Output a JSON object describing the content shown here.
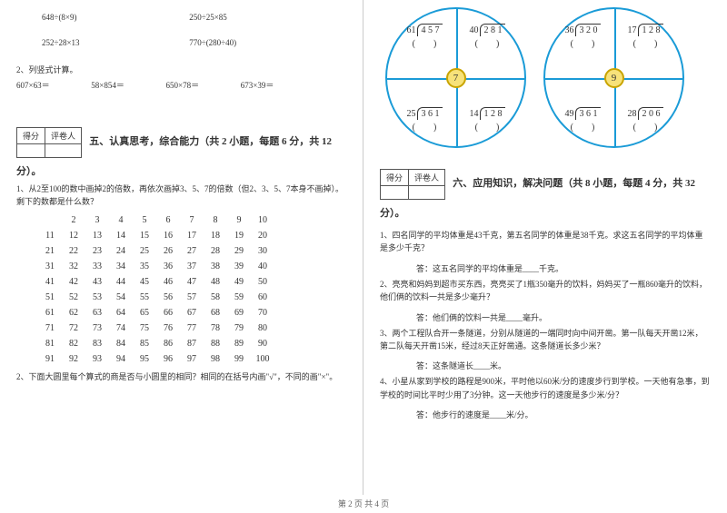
{
  "left": {
    "exprs_row1": {
      "a": "648÷(8×9)",
      "b": "250÷25×85"
    },
    "exprs_row2": {
      "a": "252÷28×13",
      "b": "770÷(280÷40)"
    },
    "vertical_label": "2、列竖式计算。",
    "vertical_exprs": {
      "a": "607×63＝",
      "b": "58×854＝",
      "c": "650×78＝",
      "d": "673×39＝"
    },
    "score_headers": {
      "a": "得分",
      "b": "评卷人"
    },
    "section5_title": "五、认真思考，综合能力（共 2 小题，每题 6 分，共 12",
    "section5_title2": "分）。",
    "q1": "1、从2至100的数中画掉2的倍数，再依次画掉3、5、7的倍数（但2、3、5、7本身不画掉）。剩下的数都是什么数？",
    "grid": [
      [
        "2",
        "3",
        "4",
        "5",
        "6",
        "7",
        "8",
        "9",
        "10"
      ],
      [
        "11",
        "12",
        "13",
        "14",
        "15",
        "16",
        "17",
        "18",
        "19",
        "20"
      ],
      [
        "21",
        "22",
        "23",
        "24",
        "25",
        "26",
        "27",
        "28",
        "29",
        "30"
      ],
      [
        "31",
        "32",
        "33",
        "34",
        "35",
        "36",
        "37",
        "38",
        "39",
        "40"
      ],
      [
        "41",
        "42",
        "43",
        "44",
        "45",
        "46",
        "47",
        "48",
        "49",
        "50"
      ],
      [
        "51",
        "52",
        "53",
        "54",
        "55",
        "56",
        "57",
        "58",
        "59",
        "60"
      ],
      [
        "61",
        "62",
        "63",
        "64",
        "65",
        "66",
        "67",
        "68",
        "69",
        "70"
      ],
      [
        "71",
        "72",
        "73",
        "74",
        "75",
        "76",
        "77",
        "78",
        "79",
        "80"
      ],
      [
        "81",
        "82",
        "83",
        "84",
        "85",
        "86",
        "87",
        "88",
        "89",
        "90"
      ],
      [
        "91",
        "92",
        "93",
        "94",
        "95",
        "96",
        "97",
        "98",
        "99",
        "100"
      ]
    ],
    "q2": "2、下面大圆里每个算式的商是否与小圆里的相同？相同的在括号内画\"√\"，不同的画\"×\"。"
  },
  "right": {
    "circle1": {
      "hub": "7",
      "TL": {
        "divisor": "61",
        "dividend": "4 5 7"
      },
      "TR": {
        "divisor": "40",
        "dividend": "2 8 1"
      },
      "BL": {
        "divisor": "25",
        "dividend": "3 6 1"
      },
      "BR": {
        "divisor": "14",
        "dividend": "1 2 8"
      }
    },
    "circle2": {
      "hub": "9",
      "TL": {
        "divisor": "36",
        "dividend": "3 2 0"
      },
      "TR": {
        "divisor": "17",
        "dividend": "1 2 8"
      },
      "BL": {
        "divisor": "49",
        "dividend": "3 6 1"
      },
      "BR": {
        "divisor": "28",
        "dividend": "2 0 6"
      }
    },
    "paren_label": "(　　)",
    "score_headers": {
      "a": "得分",
      "b": "评卷人"
    },
    "section6_title": "六、应用知识，解决问题（共 8 小题，每题 4 分，共 32",
    "section6_title2": "分）。",
    "q1": "1、四名同学的平均体重是43千克，第五名同学的体重是38千克。求这五名同学的平均体重是多少千克？",
    "a1": "答：这五名同学的平均体重是____千克。",
    "q2": "2、亮亮和妈妈到超市买东西，亮亮买了1瓶350毫升的饮料，妈妈买了一瓶860毫升的饮料，他们俩的饮料一共是多少毫升？",
    "a2": "答：他们俩的饮料一共是____毫升。",
    "q3": "3、两个工程队合开一条隧道，分别从隧道的一端同时向中间开凿。第一队每天开凿12米，第二队每天开凿15米，经过8天正好凿通。这条隧道长多少米？",
    "a3": "答：这条隧道长____米。",
    "q4": "4、小星从家到学校的路程是900米，平时他以60米/分的速度步行到学校。一天他有急事，到学校的时间比平时少用了3分钟。这一天他步行的速度是多少米/分？",
    "a4": "答：他步行的速度是____米/分。"
  },
  "footer": "第 2 页 共 4 页"
}
